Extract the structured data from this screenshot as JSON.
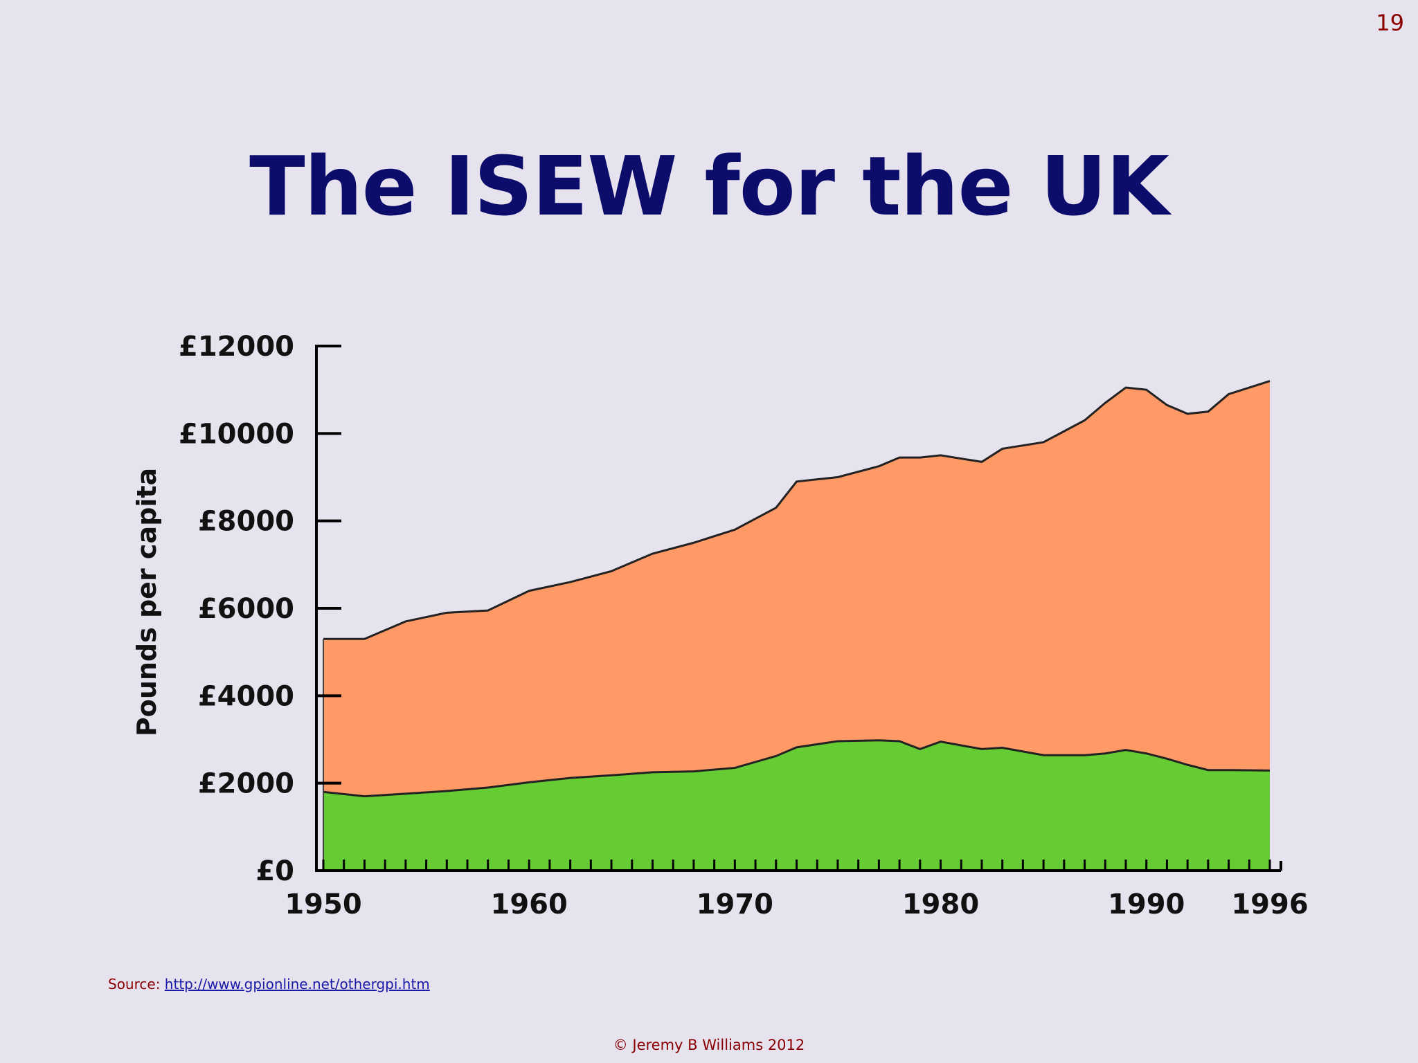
{
  "slide": {
    "number": "19",
    "title": "The ISEW for the UK",
    "source_label": "Source:",
    "source_link": "http://www.gpionline.net/othergpi.htm",
    "copyright": "© Jeremy B Williams 2012"
  },
  "chart_data": {
    "type": "area",
    "title": "",
    "xlabel": "",
    "ylabel": "Pounds per capita",
    "x": [
      1950,
      1952,
      1954,
      1956,
      1958,
      1960,
      1962,
      1964,
      1966,
      1968,
      1970,
      1972,
      1973,
      1975,
      1977,
      1978,
      1979,
      1980,
      1982,
      1983,
      1985,
      1987,
      1988,
      1989,
      1990,
      1991,
      1992,
      1993,
      1994,
      1996
    ],
    "series": [
      {
        "color": "#66cc33",
        "values": [
          1800,
          1700,
          1760,
          1820,
          1900,
          2020,
          2120,
          2180,
          2250,
          2270,
          2350,
          2620,
          2820,
          2960,
          2980,
          2960,
          2780,
          2950,
          2780,
          2810,
          2640,
          2640,
          2680,
          2760,
          2680,
          2560,
          2420,
          2300,
          2300,
          2290
        ]
      },
      {
        "color": "#ff9966",
        "values": [
          5300,
          5300,
          5700,
          5900,
          5950,
          6400,
          6600,
          6850,
          7250,
          7500,
          7800,
          8300,
          8900,
          9000,
          9250,
          9450,
          9450,
          9500,
          9350,
          9650,
          9800,
          10300,
          10700,
          11050,
          11000,
          10650,
          10450,
          10500,
          10900,
          11200
        ]
      }
    ],
    "xticks": [
      1950,
      1960,
      1970,
      1980,
      1990,
      1996
    ],
    "yticks": [
      "£0",
      "£2000",
      "£4000",
      "£6000",
      "£8000",
      "£10000",
      "£12000"
    ],
    "ytick_values": [
      0,
      2000,
      4000,
      6000,
      8000,
      10000,
      12000
    ],
    "xlim": [
      1950,
      1996
    ],
    "ylim": [
      0,
      12000
    ],
    "legend": "none",
    "grid": false
  }
}
